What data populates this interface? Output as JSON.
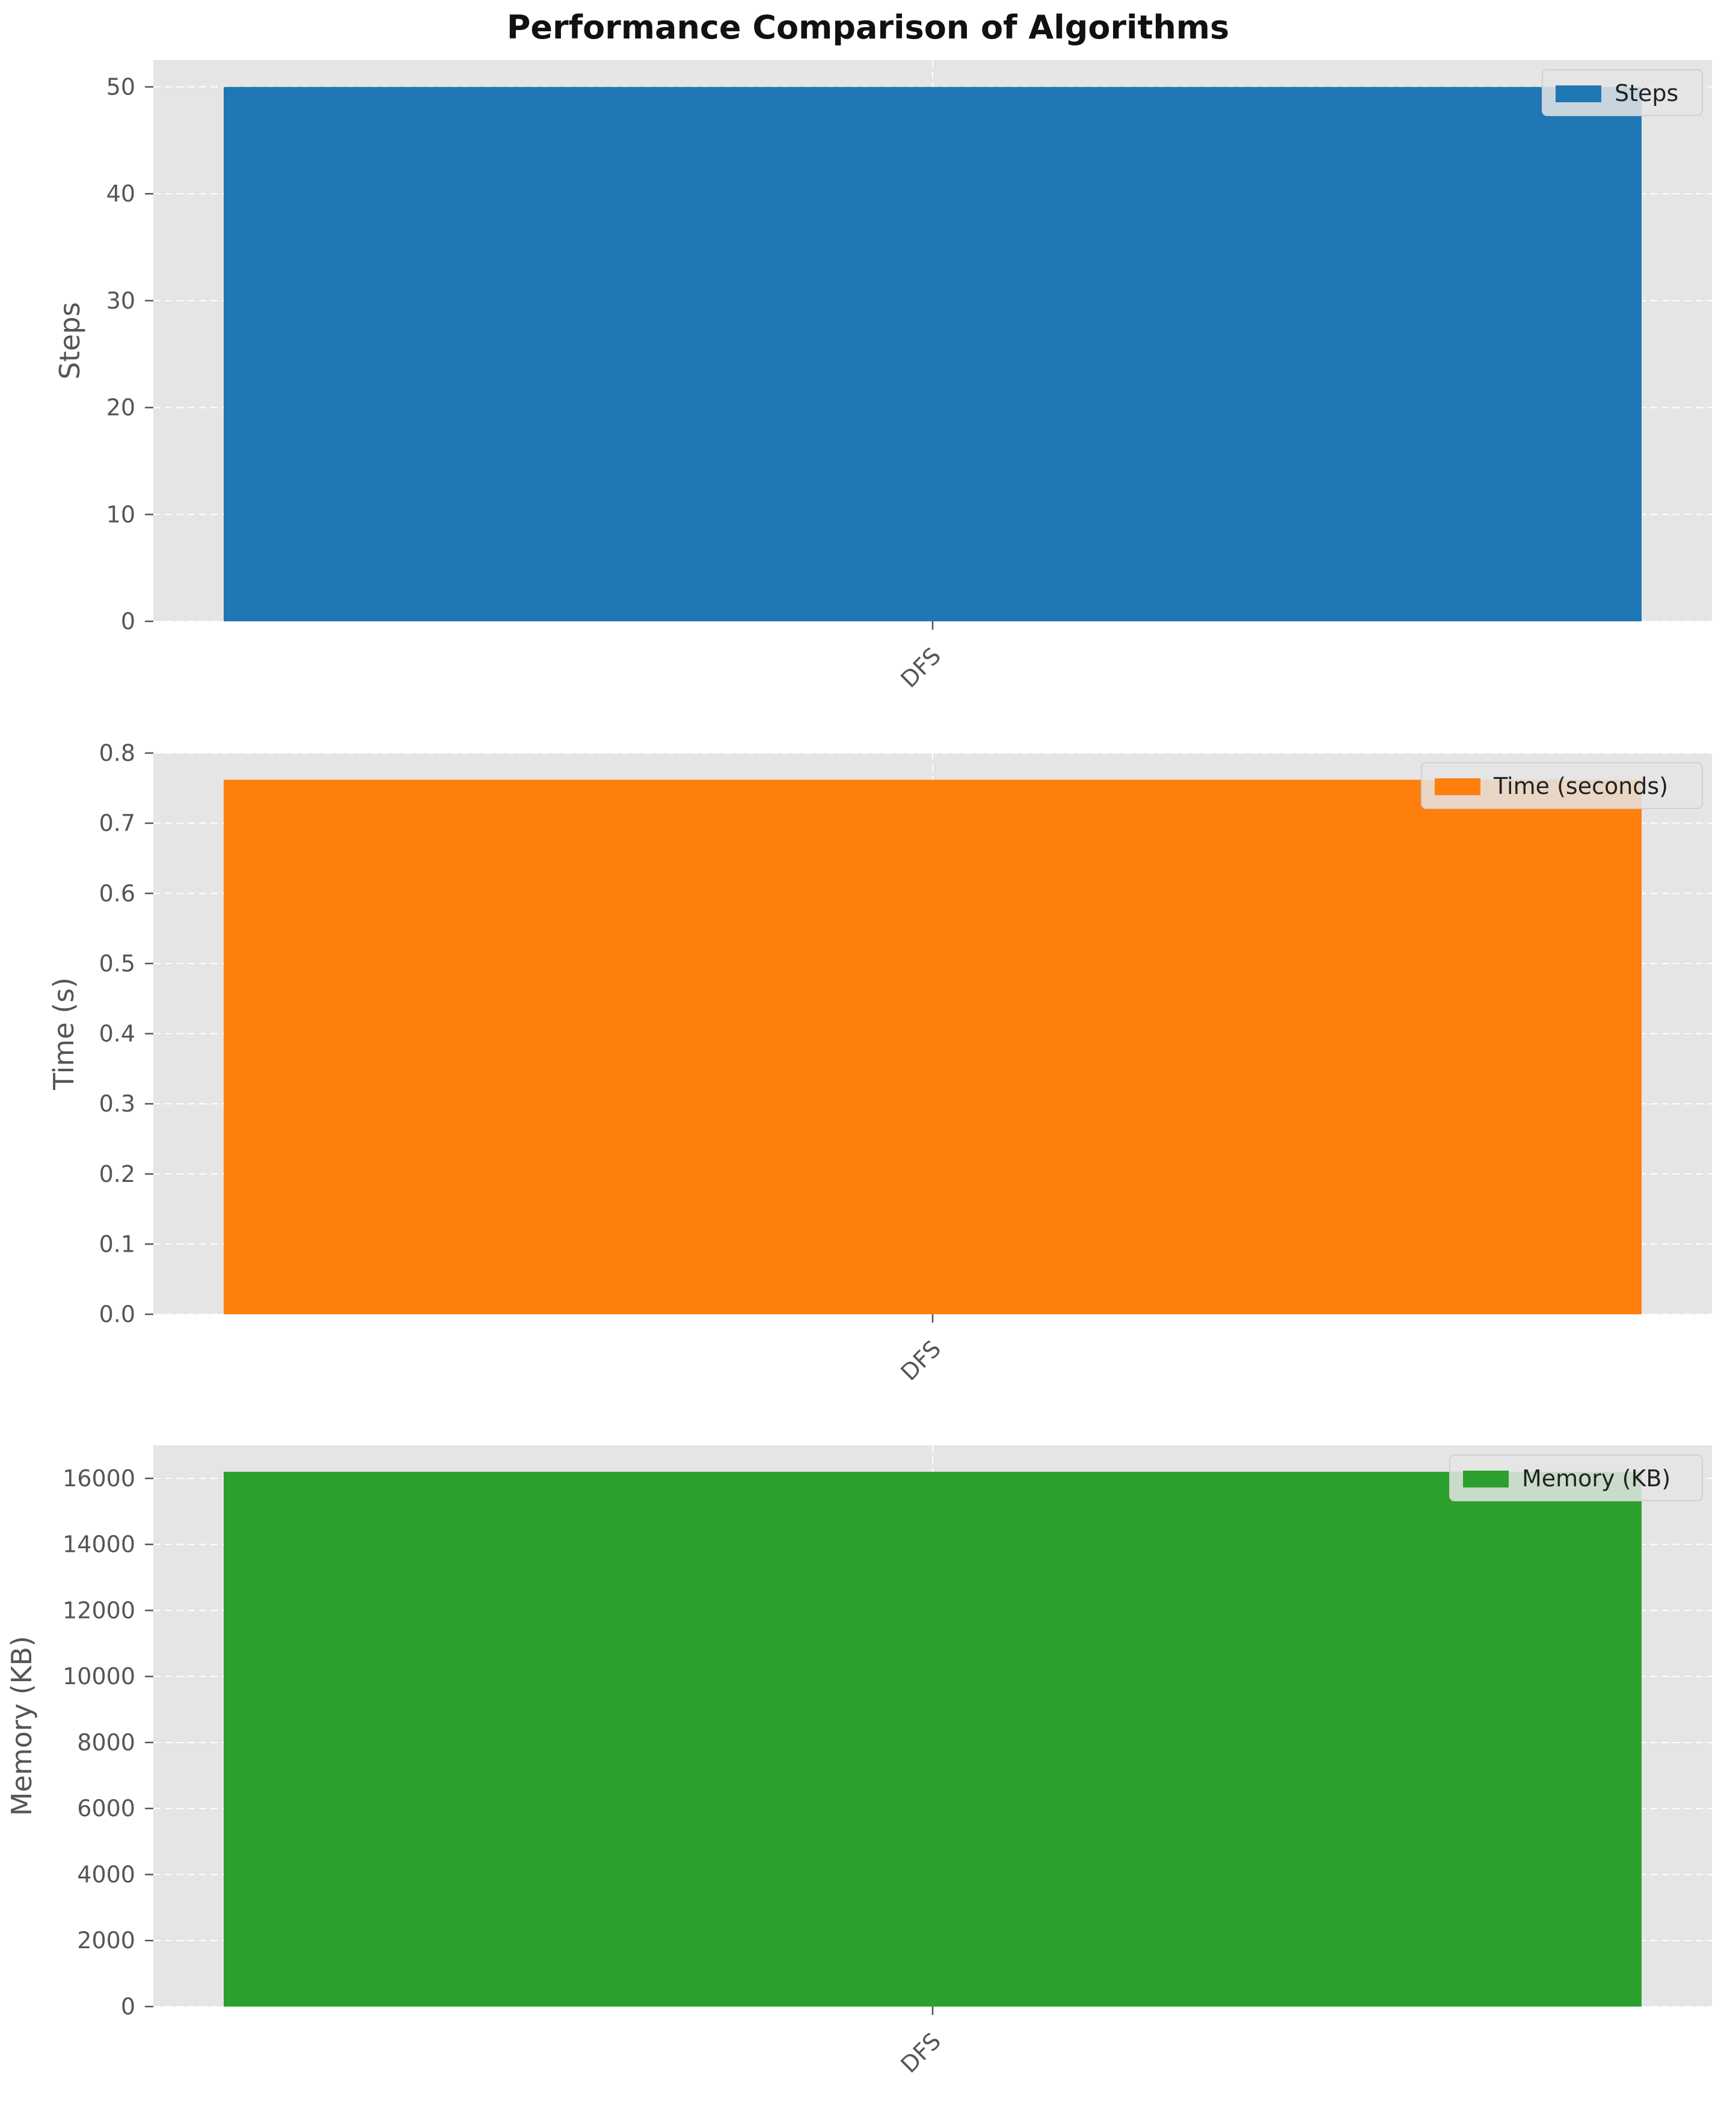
{
  "title": "Performance Comparison of Algorithms",
  "colors": {
    "panel_bg": "#e5e5e5",
    "grid": "#ffffff",
    "text": "#555555"
  },
  "chart_data": [
    {
      "type": "bar",
      "categories": [
        "DFS"
      ],
      "series": [
        {
          "name": "Steps",
          "values": [
            50
          ],
          "color": "#1f77b4"
        }
      ],
      "xlabel": "",
      "ylabel": "Steps",
      "ylim": [
        0,
        52.5
      ],
      "yticks": [
        0,
        10,
        20,
        30,
        40,
        50
      ],
      "ytick_labels": [
        "0",
        "10",
        "20",
        "30",
        "40",
        "50"
      ],
      "grid": true,
      "legend_position": "top-right"
    },
    {
      "type": "bar",
      "categories": [
        "DFS"
      ],
      "series": [
        {
          "name": "Time (seconds)",
          "values": [
            0.762
          ],
          "color": "#ff7f0e"
        }
      ],
      "xlabel": "",
      "ylabel": "Time (s)",
      "ylim": [
        0,
        0.8
      ],
      "yticks": [
        0,
        0.1,
        0.2,
        0.3,
        0.4,
        0.5,
        0.6,
        0.7,
        0.8
      ],
      "ytick_labels": [
        "0.0",
        "0.1",
        "0.2",
        "0.3",
        "0.4",
        "0.5",
        "0.6",
        "0.7",
        "0.8"
      ],
      "grid": true,
      "legend_position": "top-right"
    },
    {
      "type": "bar",
      "categories": [
        "DFS"
      ],
      "series": [
        {
          "name": "Memory (KB)",
          "values": [
            16200
          ],
          "color": "#2ca02c"
        }
      ],
      "xlabel": "",
      "ylabel": "Memory (KB)",
      "ylim": [
        0,
        17000
      ],
      "yticks": [
        0,
        2000,
        4000,
        6000,
        8000,
        10000,
        12000,
        14000,
        16000
      ],
      "ytick_labels": [
        "0",
        "2000",
        "4000",
        "6000",
        "8000",
        "10000",
        "12000",
        "14000",
        "16000"
      ],
      "grid": true,
      "legend_position": "top-right"
    }
  ]
}
